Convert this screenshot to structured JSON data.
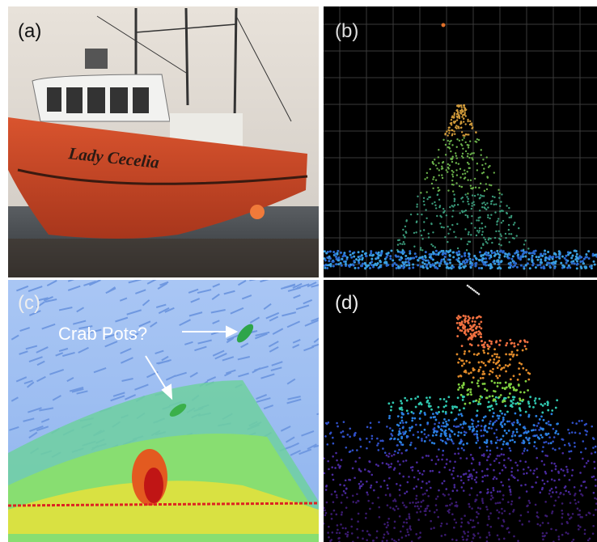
{
  "panels": [
    {
      "label": "(a)",
      "boat_name": "Lady Cecelia"
    },
    {
      "label": "(b)"
    },
    {
      "label": "(c)",
      "annotation": "Crab Pots?"
    },
    {
      "label": "(d)"
    }
  ]
}
